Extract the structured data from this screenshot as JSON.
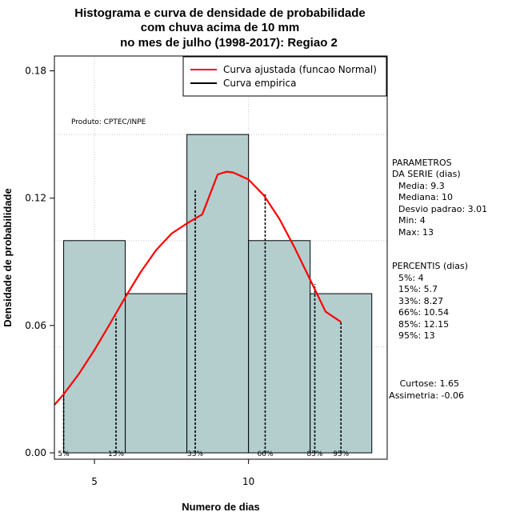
{
  "chart_data": {
    "type": "bar",
    "title_lines": [
      "Histograma e curva de densidade de probabilidade",
      "com chuva acima de 10 mm",
      "no mes de julho (1998-2017): Regiao 2"
    ],
    "xlabel": "Numero de dias",
    "ylabel": "Densidade de probabilidade",
    "xlim": [
      3.7,
      14.5
    ],
    "ylim": [
      -0.003,
      0.187
    ],
    "x_ticks": [
      5,
      10
    ],
    "y_ticks": [
      0.0,
      0.06,
      0.12,
      0.18
    ],
    "y_tick_labels": [
      "0.00",
      "0.06",
      "0.12",
      "0.18"
    ],
    "grid": true,
    "grid_x": [
      5,
      10
    ],
    "grid_y": [
      0.05,
      0.1,
      0.15
    ],
    "histogram": {
      "fill": "#b4cece",
      "bins": [
        {
          "x0": 4,
          "x1": 6,
          "density": 0.1
        },
        {
          "x0": 6,
          "x1": 8,
          "density": 0.075
        },
        {
          "x0": 8,
          "x1": 10,
          "density": 0.15
        },
        {
          "x0": 10,
          "x1": 12,
          "density": 0.1
        },
        {
          "x0": 12,
          "x1": 14,
          "density": 0.075
        }
      ]
    },
    "series": [
      {
        "name": "Curva ajustada (funcao Normal)",
        "color": "#ff0000",
        "x": [
          3.7,
          4.0,
          4.5,
          5.0,
          5.5,
          6.0,
          6.5,
          7.0,
          7.5,
          8.0,
          8.5,
          9.0,
          9.3,
          9.5,
          10.0,
          10.5,
          11.0,
          11.5,
          12.0,
          12.5,
          13.0
        ],
        "y": [
          0.0226,
          0.0276,
          0.0373,
          0.0485,
          0.0607,
          0.0733,
          0.0852,
          0.0955,
          0.1033,
          0.1081,
          0.1124,
          0.1312,
          0.1325,
          0.1321,
          0.1288,
          0.1213,
          0.1103,
          0.0966,
          0.0816,
          0.0665,
          0.0617
        ]
      },
      {
        "name": "Curva empirica",
        "color": "#000000"
      }
    ],
    "legend_position": "top-right",
    "percentile_lines": [
      {
        "label": "5%",
        "x": 4,
        "density": 0.0286
      },
      {
        "label": "15%",
        "x": 5.7,
        "density": 0.0643
      },
      {
        "label": "33%",
        "x": 8.27,
        "density": 0.1244
      },
      {
        "label": "66%",
        "x": 10.54,
        "density": 0.1221
      },
      {
        "label": "85%",
        "x": 12.15,
        "density": 0.0795
      },
      {
        "label": "95%",
        "x": 13,
        "density": 0.0617
      }
    ],
    "annotation": "Produto: CPTEC/INPE",
    "parametros": {
      "heading": [
        "PARAMETROS",
        "DA SERIE (dias)"
      ],
      "lines": [
        "Media: 9.3",
        "Mediana: 10",
        "Desvio padrao: 3.01",
        "Min: 4",
        "Max: 13"
      ]
    },
    "percentis": {
      "heading": "PERCENTIS (dias)",
      "lines": [
        "5%: 4",
        "15%: 5.7",
        "33%: 8.27",
        "66%: 10.54",
        "85%: 12.15",
        "95%: 13"
      ]
    },
    "stats": [
      "Curtose: 1.65",
      "Assimetria: -0.06"
    ]
  }
}
